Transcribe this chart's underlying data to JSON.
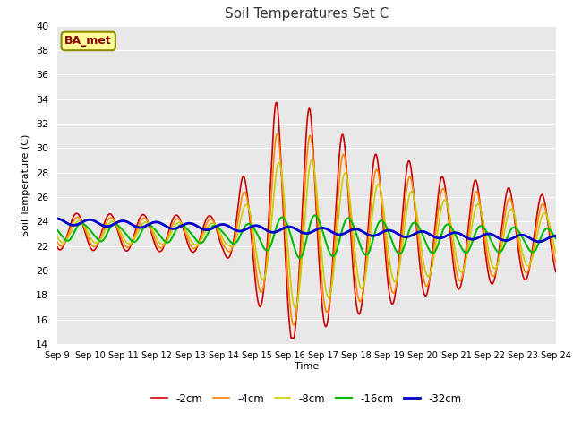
{
  "title": "Soil Temperatures Set C",
  "xlabel": "Time",
  "ylabel": "Soil Temperature (C)",
  "ylim": [
    14,
    40
  ],
  "xlim": [
    0,
    360
  ],
  "bg_color": "#e8e8e8",
  "plot_bg": "#e8e8e8",
  "fig_bg": "#ffffff",
  "annotation": "BA_met",
  "annotation_bg": "#ffff99",
  "annotation_border": "#8B8B00",
  "legend_labels": [
    "-2cm",
    "-4cm",
    "-8cm",
    "-16cm",
    "-32cm"
  ],
  "line_colors": [
    "#cc0000",
    "#ff8800",
    "#cccc00",
    "#00bb00",
    "#0000cc"
  ],
  "line_widths": [
    1.2,
    1.2,
    1.2,
    1.5,
    2.0
  ],
  "xtick_labels": [
    "Sep 9",
    "Sep 10",
    "Sep 11",
    "Sep 12",
    "Sep 13",
    "Sep 14",
    "Sep 15",
    "Sep 16",
    "Sep 17",
    "Sep 18",
    "Sep 19",
    "Sep 20",
    "Sep 21",
    "Sep 22",
    "Sep 23",
    "Sep 24"
  ],
  "xtick_positions": [
    0,
    24,
    48,
    72,
    96,
    120,
    144,
    168,
    192,
    216,
    240,
    264,
    288,
    312,
    336,
    360
  ]
}
